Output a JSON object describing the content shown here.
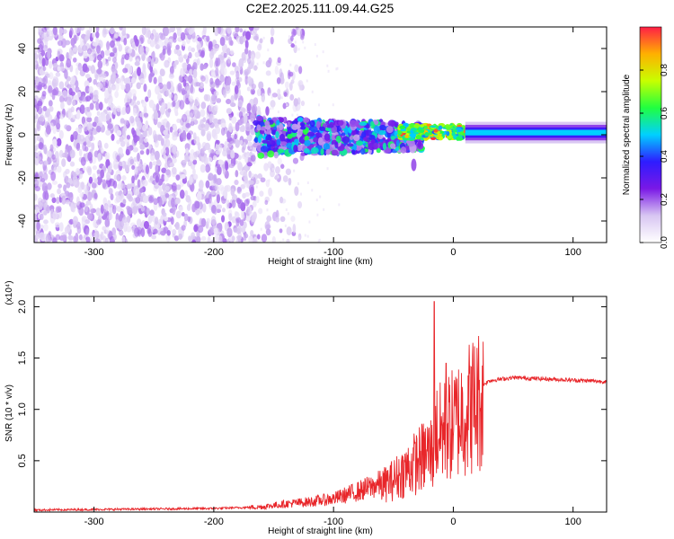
{
  "figure": {
    "title": "C2E2.2025.111.09.44.G25"
  },
  "chart_data": [
    {
      "type": "heatmap",
      "title": "C2E2.2025.111.09.44.G25",
      "xlabel": "Height of straight line (km)",
      "ylabel": "Frequency (Hz)",
      "xlim": [
        -350,
        128
      ],
      "ylim": [
        -50,
        50
      ],
      "x_ticks": [
        -300,
        -200,
        -100,
        0,
        100
      ],
      "x_tick_labels": [
        "-300",
        "-200",
        "-100",
        "0",
        "100"
      ],
      "y_ticks": [
        -40,
        -20,
        0,
        20,
        40
      ],
      "y_tick_labels": [
        "-40",
        "-20",
        "0",
        "20",
        "40"
      ],
      "colorbar": {
        "label": "Normalized spectral amplitude",
        "range": [
          0,
          1
        ],
        "ticks": [
          0,
          0.2,
          0.4,
          0.6,
          0.8
        ],
        "tick_labels": [
          "0.0",
          "0.2",
          "0.4",
          "0.6",
          "0.8"
        ],
        "colormap": [
          "#ffffff",
          "#d8c6f2",
          "#7a18e6",
          "#2e1cff",
          "#00d0ff",
          "#20ff40",
          "#c8ff00",
          "#ffb000",
          "#ff1e46"
        ]
      },
      "features": [
        {
          "region": "noise",
          "x_range": [
            -350,
            -165
          ],
          "freq_range": [
            -50,
            50
          ],
          "amplitude": [
            0.05,
            0.2
          ]
        },
        {
          "region": "transition",
          "x_range": [
            -165,
            -25
          ],
          "freq_range": [
            -12,
            10
          ],
          "amplitude": [
            0.15,
            0.5
          ]
        },
        {
          "region": "peak",
          "x_range": [
            -45,
            10
          ],
          "freq_range": [
            0,
            5
          ],
          "amplitude": [
            0.6,
            0.95
          ]
        },
        {
          "region": "stable_line",
          "x_range": [
            10,
            128
          ],
          "freq_center": 1,
          "amplitude": 0.5
        }
      ]
    },
    {
      "type": "line",
      "xlabel": "Height of straight line (km)",
      "ylabel": "SNR (10 * v/v)",
      "y_multiplier": "(x10⁴)",
      "xlim": [
        -350,
        128
      ],
      "ylim": [
        0,
        2.1
      ],
      "x_ticks": [
        -300,
        -200,
        -100,
        0,
        100
      ],
      "x_tick_labels": [
        "-300",
        "-200",
        "-100",
        "0",
        "100"
      ],
      "y_ticks": [
        0.5,
        1.0,
        1.5,
        2.0
      ],
      "y_tick_labels": [
        "0.5",
        "1.0",
        "1.5",
        "2.0"
      ],
      "color": "#e8262a",
      "series": [
        {
          "x": [
            -350,
            -300,
            -250,
            -200,
            -160,
            -140,
            -120,
            -100,
            -80,
            -60,
            -50,
            -40,
            -30,
            -20,
            -16,
            -10,
            0,
            10,
            20,
            30,
            50,
            70,
            90,
            110,
            128
          ],
          "y": [
            0.02,
            0.025,
            0.03,
            0.035,
            0.05,
            0.08,
            0.1,
            0.13,
            0.2,
            0.28,
            0.35,
            0.45,
            0.55,
            0.65,
            2.0,
            0.85,
            0.95,
            1.1,
            1.2,
            1.28,
            1.31,
            1.3,
            1.29,
            1.28,
            1.27
          ]
        }
      ]
    }
  ]
}
